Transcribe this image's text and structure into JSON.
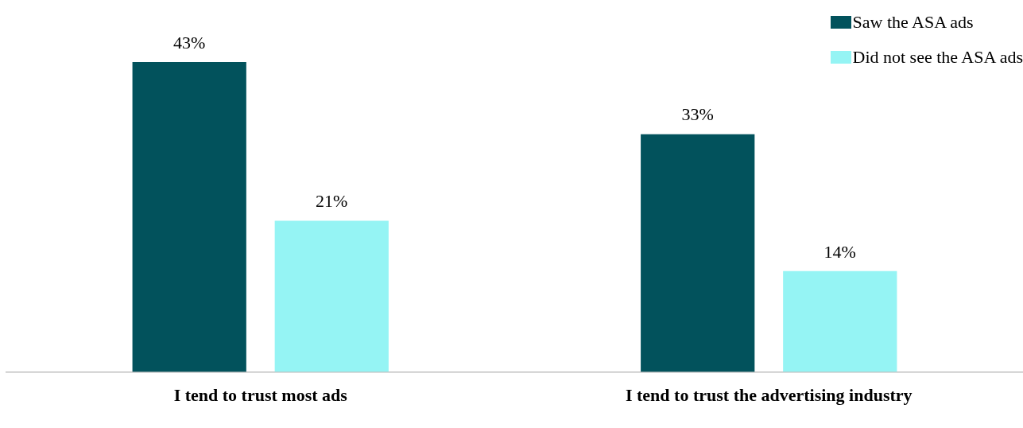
{
  "chart_data": {
    "type": "bar",
    "categories": [
      "I tend to trust most ads",
      "I tend to trust the advertising industry"
    ],
    "series": [
      {
        "name": "Saw the ASA ads",
        "color": "#02525c",
        "values": [
          43,
          33
        ],
        "value_labels": [
          "43%",
          "33%"
        ]
      },
      {
        "name": "Did not see the ASA ads",
        "color": "#95f4f4",
        "values": [
          21,
          14
        ],
        "value_labels": [
          "21%",
          "14%"
        ]
      }
    ],
    "relative": false,
    "grid": false,
    "legend": "top right"
  }
}
